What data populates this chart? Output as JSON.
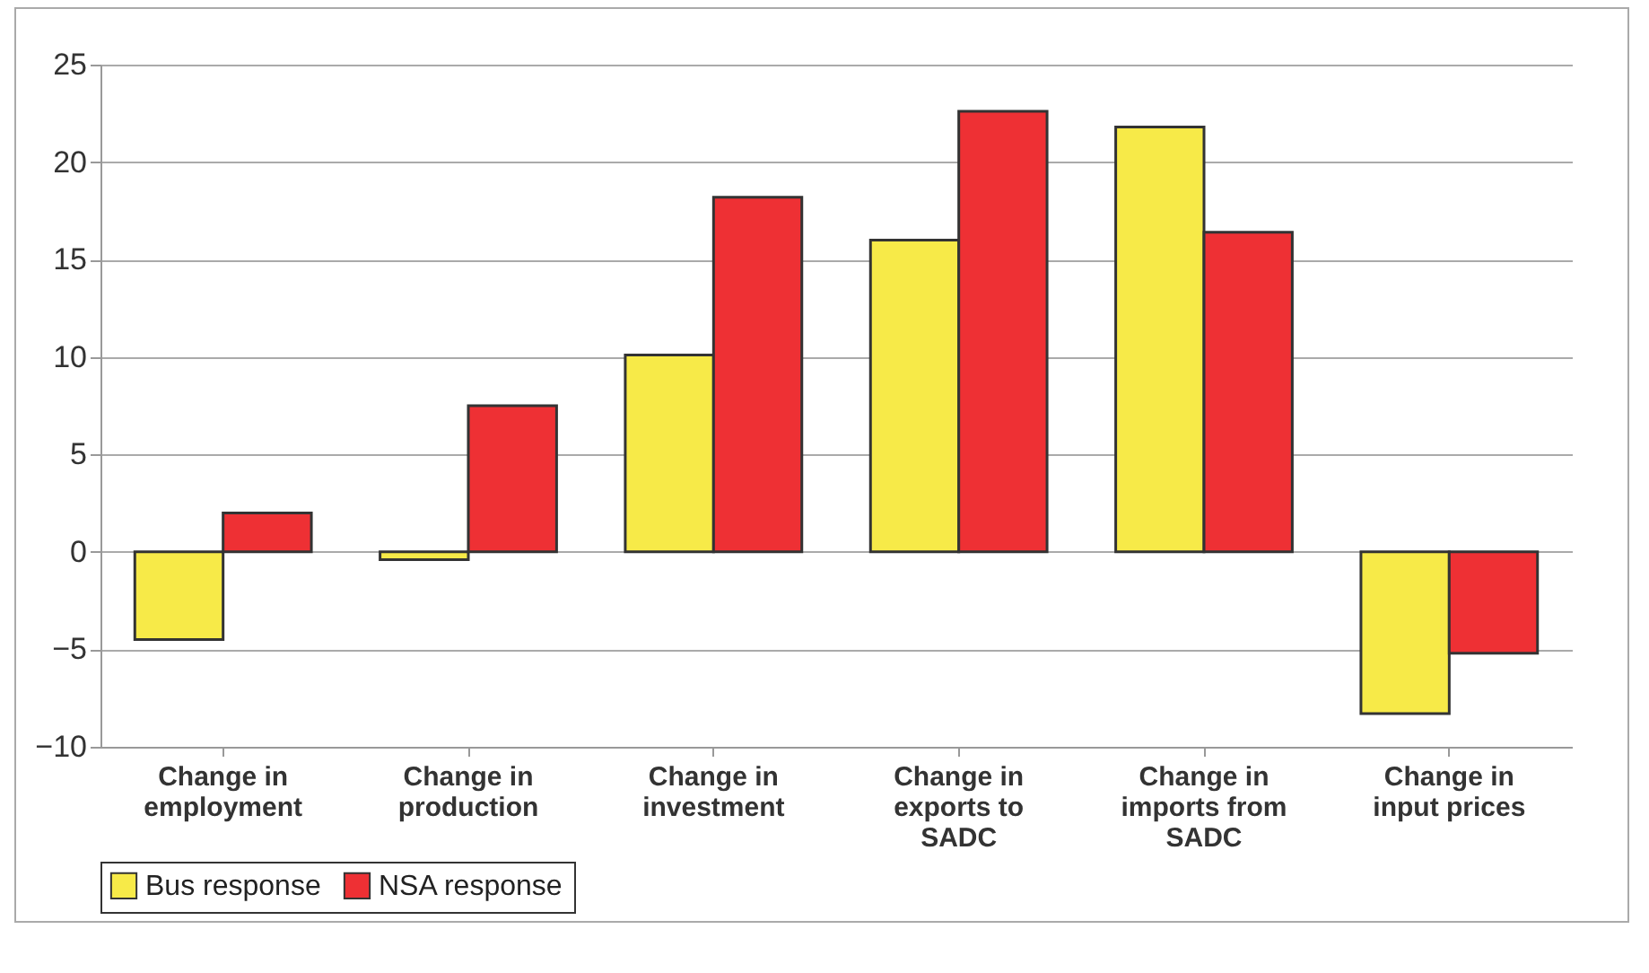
{
  "chart_data": {
    "type": "bar",
    "categories": [
      "Change in employment",
      "Change in production",
      "Change in investment",
      "Change in exports to SADC",
      "Change in imports from SADC",
      "Change in input prices"
    ],
    "series": [
      {
        "name": "Bus response",
        "color": "#f7ea48",
        "values": [
          -4.5,
          -0.4,
          10.1,
          16.0,
          21.8,
          -8.3
        ]
      },
      {
        "name": "NSA response",
        "color": "#ee3034",
        "values": [
          2.0,
          7.5,
          18.2,
          22.6,
          16.4,
          -5.2
        ]
      }
    ],
    "ylim": [
      -10,
      25
    ],
    "yticks": [
      -10,
      -5,
      0,
      5,
      10,
      15,
      20,
      25
    ],
    "grid": "y",
    "legend": "bottom"
  }
}
